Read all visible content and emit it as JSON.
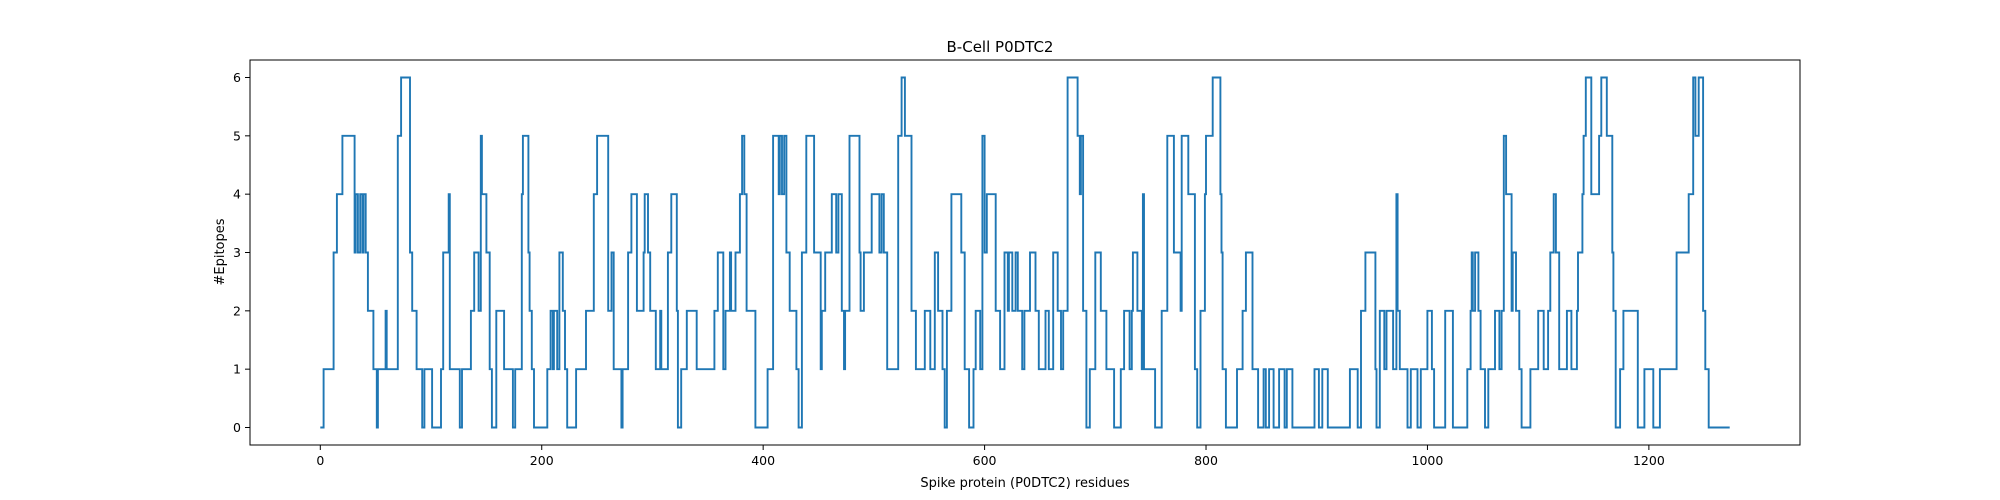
{
  "chart_data": {
    "type": "line",
    "title": "B-Cell P0DTC2",
    "xlabel": "Spike protein (P0DTC2) residues",
    "ylabel": "#Epitopes",
    "xlim": [
      -63.5,
      1336.5
    ],
    "ylim": [
      -0.3,
      6.3
    ],
    "xticks": [
      0,
      200,
      400,
      600,
      800,
      1000,
      1200
    ],
    "yticks": [
      0,
      1,
      2,
      3,
      4,
      5,
      6
    ],
    "grid": false,
    "color": "#1f77b4",
    "step_points": [
      [
        0,
        0
      ],
      [
        3,
        1
      ],
      [
        12,
        3
      ],
      [
        15,
        4
      ],
      [
        20,
        5
      ],
      [
        31,
        3
      ],
      [
        32,
        4
      ],
      [
        34,
        3
      ],
      [
        36,
        4
      ],
      [
        38,
        3
      ],
      [
        39,
        4
      ],
      [
        41,
        3
      ],
      [
        43,
        2
      ],
      [
        48,
        1
      ],
      [
        51,
        0
      ],
      [
        52,
        1
      ],
      [
        59,
        2
      ],
      [
        60,
        1
      ],
      [
        70,
        5
      ],
      [
        73,
        6
      ],
      [
        81,
        3
      ],
      [
        83,
        2
      ],
      [
        87,
        1
      ],
      [
        92,
        0
      ],
      [
        94,
        1
      ],
      [
        101,
        0
      ],
      [
        109,
        1
      ],
      [
        111,
        3
      ],
      [
        116,
        4
      ],
      [
        117,
        1
      ],
      [
        126,
        0
      ],
      [
        128,
        1
      ],
      [
        136,
        2
      ],
      [
        139,
        3
      ],
      [
        143,
        2
      ],
      [
        145,
        5
      ],
      [
        146,
        4
      ],
      [
        150,
        3
      ],
      [
        153,
        1
      ],
      [
        155,
        0
      ],
      [
        159,
        2
      ],
      [
        166,
        1
      ],
      [
        174,
        0
      ],
      [
        176,
        1
      ],
      [
        182,
        4
      ],
      [
        183,
        5
      ],
      [
        188,
        3
      ],
      [
        189,
        2
      ],
      [
        191,
        1
      ],
      [
        193,
        0
      ],
      [
        205,
        1
      ],
      [
        208,
        2
      ],
      [
        210,
        1
      ],
      [
        211,
        2
      ],
      [
        214,
        1
      ],
      [
        216,
        3
      ],
      [
        219,
        2
      ],
      [
        221,
        1
      ],
      [
        223,
        0
      ],
      [
        231,
        1
      ],
      [
        240,
        2
      ],
      [
        247,
        4
      ],
      [
        250,
        5
      ],
      [
        260,
        2
      ],
      [
        263,
        3
      ],
      [
        265,
        1
      ],
      [
        272,
        0
      ],
      [
        273,
        1
      ],
      [
        278,
        3
      ],
      [
        281,
        4
      ],
      [
        286,
        2
      ],
      [
        292,
        3
      ],
      [
        293,
        4
      ],
      [
        296,
        3
      ],
      [
        298,
        2
      ],
      [
        303,
        1
      ],
      [
        307,
        2
      ],
      [
        308,
        1
      ],
      [
        314,
        3
      ],
      [
        317,
        4
      ],
      [
        322,
        2
      ],
      [
        323,
        0
      ],
      [
        326,
        1
      ],
      [
        331,
        2
      ],
      [
        340,
        1
      ],
      [
        356,
        2
      ],
      [
        359,
        3
      ],
      [
        364,
        1
      ],
      [
        366,
        2
      ],
      [
        370,
        3
      ],
      [
        371,
        2
      ],
      [
        375,
        3
      ],
      [
        379,
        4
      ],
      [
        381,
        5
      ],
      [
        383,
        4
      ],
      [
        385,
        2
      ],
      [
        393,
        0
      ],
      [
        404,
        1
      ],
      [
        409,
        5
      ],
      [
        414,
        4
      ],
      [
        415,
        5
      ],
      [
        417,
        4
      ],
      [
        419,
        5
      ],
      [
        421,
        3
      ],
      [
        424,
        2
      ],
      [
        430,
        1
      ],
      [
        432,
        0
      ],
      [
        435,
        3
      ],
      [
        439,
        5
      ],
      [
        446,
        3
      ],
      [
        452,
        1
      ],
      [
        453,
        2
      ],
      [
        456,
        3
      ],
      [
        462,
        4
      ],
      [
        466,
        3
      ],
      [
        468,
        4
      ],
      [
        471,
        2
      ],
      [
        473,
        1
      ],
      [
        474,
        2
      ],
      [
        478,
        5
      ],
      [
        487,
        3
      ],
      [
        488,
        2
      ],
      [
        491,
        3
      ],
      [
        498,
        4
      ],
      [
        505,
        3
      ],
      [
        507,
        4
      ],
      [
        509,
        3
      ],
      [
        512,
        1
      ],
      [
        522,
        5
      ],
      [
        525,
        6
      ],
      [
        528,
        5
      ],
      [
        534,
        2
      ],
      [
        538,
        1
      ],
      [
        546,
        2
      ],
      [
        551,
        1
      ],
      [
        555,
        3
      ],
      [
        558,
        2
      ],
      [
        562,
        1
      ],
      [
        564,
        0
      ],
      [
        566,
        2
      ],
      [
        570,
        4
      ],
      [
        579,
        3
      ],
      [
        582,
        1
      ],
      [
        586,
        0
      ],
      [
        590,
        1
      ],
      [
        592,
        2
      ],
      [
        596,
        1
      ],
      [
        598,
        5
      ],
      [
        600,
        3
      ],
      [
        602,
        4
      ],
      [
        610,
        2
      ],
      [
        614,
        1
      ],
      [
        618,
        3
      ],
      [
        621,
        2
      ],
      [
        622,
        3
      ],
      [
        625,
        2
      ],
      [
        628,
        3
      ],
      [
        630,
        2
      ],
      [
        634,
        1
      ],
      [
        636,
        2
      ],
      [
        641,
        3
      ],
      [
        646,
        2
      ],
      [
        649,
        1
      ],
      [
        655,
        2
      ],
      [
        658,
        1
      ],
      [
        662,
        3
      ],
      [
        666,
        2
      ],
      [
        669,
        1
      ],
      [
        671,
        2
      ],
      [
        675,
        6
      ],
      [
        684,
        5
      ],
      [
        686,
        4
      ],
      [
        687,
        5
      ],
      [
        689,
        2
      ],
      [
        692,
        0
      ],
      [
        695,
        1
      ],
      [
        700,
        3
      ],
      [
        705,
        2
      ],
      [
        710,
        1
      ],
      [
        717,
        0
      ],
      [
        723,
        1
      ],
      [
        726,
        2
      ],
      [
        731,
        1
      ],
      [
        733,
        2
      ],
      [
        734,
        3
      ],
      [
        738,
        2
      ],
      [
        742,
        1
      ],
      [
        743,
        4
      ],
      [
        744,
        1
      ],
      [
        754,
        0
      ],
      [
        760,
        2
      ],
      [
        765,
        5
      ],
      [
        771,
        3
      ],
      [
        777,
        2
      ],
      [
        778,
        5
      ],
      [
        784,
        4
      ],
      [
        790,
        1
      ],
      [
        792,
        0
      ],
      [
        795,
        2
      ],
      [
        799,
        4
      ],
      [
        800,
        5
      ],
      [
        806,
        6
      ],
      [
        813,
        4
      ],
      [
        814,
        3
      ],
      [
        815,
        1
      ],
      [
        818,
        0
      ],
      [
        828,
        1
      ],
      [
        833,
        2
      ],
      [
        836,
        3
      ],
      [
        842,
        1
      ],
      [
        847,
        0
      ],
      [
        852,
        1
      ],
      [
        854,
        0
      ],
      [
        857,
        1
      ],
      [
        861,
        0
      ],
      [
        866,
        1
      ],
      [
        871,
        0
      ],
      [
        873,
        1
      ],
      [
        878,
        0
      ],
      [
        898,
        1
      ],
      [
        902,
        0
      ],
      [
        905,
        1
      ],
      [
        910,
        0
      ],
      [
        930,
        1
      ],
      [
        937,
        0
      ],
      [
        940,
        2
      ],
      [
        944,
        3
      ],
      [
        953,
        1
      ],
      [
        954,
        0
      ],
      [
        957,
        2
      ],
      [
        961,
        1
      ],
      [
        963,
        2
      ],
      [
        969,
        1
      ],
      [
        972,
        4
      ],
      [
        973,
        2
      ],
      [
        975,
        1
      ],
      [
        982,
        0
      ],
      [
        985,
        1
      ],
      [
        991,
        0
      ],
      [
        994,
        1
      ],
      [
        1000,
        2
      ],
      [
        1004,
        1
      ],
      [
        1006,
        0
      ],
      [
        1016,
        2
      ],
      [
        1023,
        0
      ],
      [
        1036,
        1
      ],
      [
        1039,
        2
      ],
      [
        1040,
        3
      ],
      [
        1041,
        2
      ],
      [
        1043,
        3
      ],
      [
        1046,
        2
      ],
      [
        1048,
        1
      ],
      [
        1052,
        0
      ],
      [
        1055,
        1
      ],
      [
        1061,
        2
      ],
      [
        1065,
        1
      ],
      [
        1067,
        2
      ],
      [
        1069,
        5
      ],
      [
        1071,
        4
      ],
      [
        1076,
        2
      ],
      [
        1077,
        3
      ],
      [
        1080,
        2
      ],
      [
        1083,
        1
      ],
      [
        1085,
        0
      ],
      [
        1093,
        1
      ],
      [
        1100,
        2
      ],
      [
        1105,
        1
      ],
      [
        1109,
        2
      ],
      [
        1111,
        3
      ],
      [
        1114,
        4
      ],
      [
        1116,
        3
      ],
      [
        1119,
        1
      ],
      [
        1126,
        2
      ],
      [
        1130,
        1
      ],
      [
        1135,
        2
      ],
      [
        1136,
        3
      ],
      [
        1140,
        4
      ],
      [
        1141,
        5
      ],
      [
        1143,
        6
      ],
      [
        1148,
        4
      ],
      [
        1155,
        5
      ],
      [
        1157,
        6
      ],
      [
        1162,
        5
      ],
      [
        1167,
        3
      ],
      [
        1168,
        2
      ],
      [
        1170,
        0
      ],
      [
        1174,
        1
      ],
      [
        1177,
        2
      ],
      [
        1190,
        0
      ],
      [
        1196,
        1
      ],
      [
        1204,
        0
      ],
      [
        1210,
        1
      ],
      [
        1225,
        3
      ],
      [
        1236,
        4
      ],
      [
        1240,
        6
      ],
      [
        1242,
        5
      ],
      [
        1245,
        6
      ],
      [
        1249,
        2
      ],
      [
        1251,
        1
      ],
      [
        1254,
        0
      ],
      [
        1273,
        0
      ]
    ]
  }
}
